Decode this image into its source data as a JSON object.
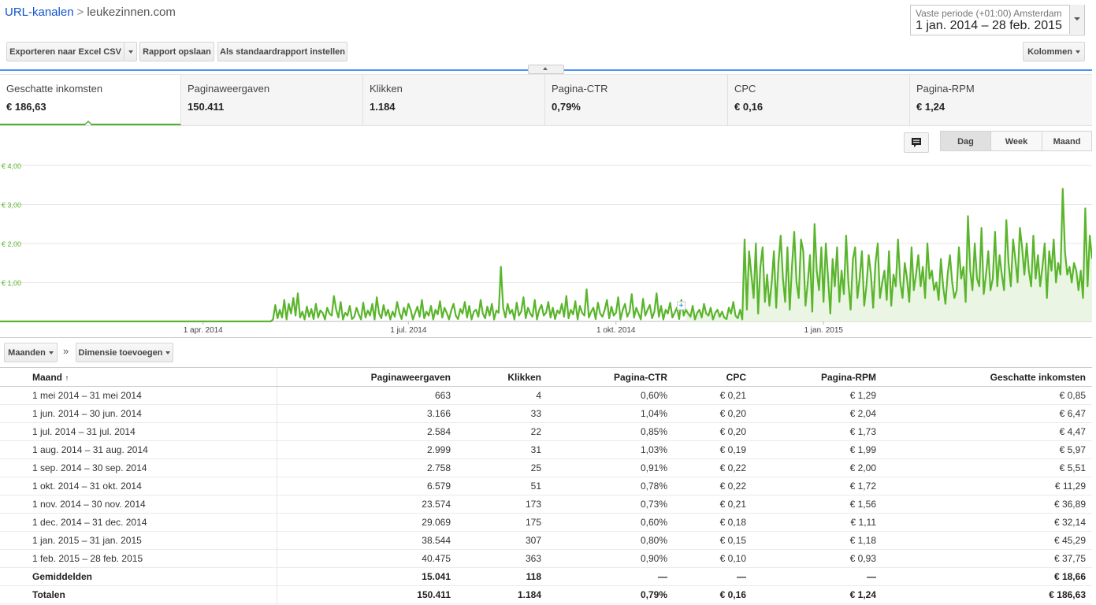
{
  "breadcrumb": {
    "parent": "URL-kanalen",
    "separator": ">",
    "current": "leukezinnen.com"
  },
  "daterange": {
    "label": "Vaste periode (+01:00) Amsterdam",
    "value": "1 jan. 2014 – 28 feb. 2015"
  },
  "toolbar": {
    "export_label": "Exporteren naar Excel CSV",
    "save_label": "Rapport opslaan",
    "default_label": "Als standaardrapport instellen",
    "columns_label": "Kolommen"
  },
  "scorecards": [
    {
      "label": "Geschatte inkomsten",
      "value": "€ 186,63"
    },
    {
      "label": "Paginaweergaven",
      "value": "150.411"
    },
    {
      "label": "Klikken",
      "value": "1.184"
    },
    {
      "label": "Pagina-CTR",
      "value": "0,79%"
    },
    {
      "label": "CPC",
      "value": "€ 0,16"
    },
    {
      "label": "Pagina-RPM",
      "value": "€ 1,24"
    }
  ],
  "granularity": {
    "day": "Dag",
    "week": "Week",
    "month": "Maand",
    "selected": "Dag"
  },
  "dimensions": {
    "months_label": "Maanden",
    "arrow": "»",
    "add_label": "Dimensie toevoegen"
  },
  "chart_data": {
    "type": "line",
    "y_ticks": [
      "€ 4,00",
      "€ 3,00",
      "€ 2,00",
      "€ 1,00"
    ],
    "x_ticks": [
      "1 apr. 2014",
      "1 jul. 2014",
      "1 okt. 2014",
      "1 jan. 2015"
    ],
    "ylim": [
      0,
      4
    ],
    "series": [
      {
        "color": "#5ab52c",
        "values": [
          0,
          0,
          0,
          0,
          0,
          0,
          0,
          0,
          0,
          0,
          0,
          0,
          0,
          0,
          0,
          0,
          0,
          0,
          0,
          0,
          0,
          0,
          0,
          0,
          0,
          0,
          0,
          0,
          0,
          0,
          0,
          0,
          0,
          0,
          0,
          0,
          0,
          0,
          0,
          0,
          0,
          0,
          0,
          0,
          0,
          0,
          0,
          0,
          0,
          0,
          0,
          0,
          0,
          0,
          0,
          0,
          0,
          0,
          0,
          0,
          0,
          0,
          0,
          0,
          0,
          0,
          0,
          0,
          0,
          0,
          0,
          0,
          0,
          0,
          0,
          0,
          0,
          0,
          0,
          0,
          0,
          0,
          0,
          0,
          0,
          0,
          0,
          0,
          0,
          0,
          0,
          0,
          0,
          0,
          0,
          0,
          0,
          0,
          0,
          0,
          0,
          0,
          0,
          0,
          0,
          0,
          0,
          0,
          0,
          0,
          0,
          0,
          0,
          0,
          0,
          0,
          0,
          0,
          0,
          0,
          0,
          0.05,
          0.42,
          0.08,
          0.3,
          0.1,
          0.55,
          0.05,
          0.45,
          0.2,
          0.6,
          0.15,
          0.72,
          0.1,
          0.25,
          0.05,
          0.38,
          0.12,
          0.32,
          0.06,
          0.45,
          0.1,
          0.28,
          0.22,
          0.05,
          0.35,
          0.2,
          0.15,
          0.65,
          0.3,
          0.1,
          0.5,
          0.05,
          0.22,
          0.15,
          0.4,
          0.06,
          0.12,
          0.35,
          0.18,
          0.05,
          0.48,
          0.1,
          0.28,
          0.15,
          0.45,
          0.05,
          0.62,
          0.2,
          0.08,
          0.42,
          0.15,
          0.3,
          0.05,
          0.25,
          0.12,
          0.5,
          0.22,
          0.06,
          0.35,
          0.15,
          0.45,
          0.3,
          0.05,
          0.22,
          0.38,
          0.12,
          0.55,
          0.08,
          0.25,
          0.15,
          0.4,
          0.05,
          0.3,
          0.18,
          0.52,
          0.1,
          0.35,
          0.22,
          0.05,
          0.28,
          0.45,
          0.15,
          0.06,
          0.32,
          0.2,
          0.5,
          0.1,
          0.4,
          0.05,
          0.25,
          0.3,
          0.12,
          0.55,
          0.2,
          0.08,
          0.38,
          0.15,
          0.45,
          0.05,
          0.28,
          0.22,
          1.4,
          0.35,
          0.1,
          0.45,
          0.2,
          0.3,
          0.05,
          0.48,
          0.15,
          0.25,
          0.62,
          0.08,
          0.35,
          0.2,
          0.12,
          0.55,
          0.05,
          0.3,
          0.42,
          0.15,
          0.22,
          0.5,
          0.1,
          0.35,
          0.06,
          0.28,
          0.2,
          0.45,
          0.12,
          0.65,
          0.08,
          0.3,
          0.18,
          0.52,
          0.05,
          0.4,
          0.22,
          0.15,
          0.82,
          0.1,
          0.25,
          0.35,
          0.06,
          0.48,
          0.2,
          0.12,
          0.3,
          0.55,
          0.08,
          0.38,
          0.15,
          0.22,
          0.62,
          0.05,
          0.3,
          0.45,
          0.12,
          0.25,
          0.7,
          0.1,
          0.35,
          0.2,
          0.05,
          0.58,
          0.15,
          0.3,
          0.42,
          0.08,
          0.25,
          0.72,
          0.12,
          0.4,
          0.05,
          0.3,
          0.2,
          0.48,
          0.1,
          0.22,
          0.35,
          0.06,
          0.55,
          0.15,
          0.3,
          0.2,
          0.12,
          0.4,
          0.05,
          0.22,
          0.3,
          0.1,
          0.45,
          0.2,
          0.15,
          0.35,
          0.05,
          0.22,
          0.3,
          0.12,
          0.25,
          0.1,
          0.06,
          0.35,
          0.2,
          0.5,
          0.15,
          0.08,
          0.3,
          0.05,
          2.1,
          0.3,
          1.8,
          1.2,
          0.6,
          2.0,
          0.2,
          1.4,
          1.9,
          0.5,
          1.2,
          0.4,
          1.0,
          1.8,
          0.35,
          1.5,
          2.2,
          1.1,
          0.5,
          1.9,
          0.3,
          1.4,
          2.3,
          1.0,
          0.6,
          2.1,
          1.8,
          0.4,
          1.0,
          1.7,
          0.25,
          2.5,
          1.3,
          0.8,
          1.9,
          0.5,
          2.0,
          1.1,
          0.2,
          1.6,
          0.9,
          1.9,
          0.5,
          1.3,
          0.7,
          2.2,
          1.0,
          0.3,
          1.6,
          1.9,
          0.6,
          1.1,
          1.8,
          0.4,
          0.9,
          1.7,
          1.2,
          0.35,
          1.5,
          2.0,
          0.6,
          1.0,
          1.3,
          0.55,
          1.8,
          0.4,
          1.2,
          0.9,
          2.1,
          1.0,
          0.6,
          1.5,
          1.1,
          0.5,
          1.9,
          0.8,
          1.2,
          1.7,
          0.9,
          1.4,
          0.6,
          2.0,
          1.1,
          1.3,
          0.8,
          1.0,
          0.55,
          1.6,
          0.9,
          0.45,
          1.2,
          1.7,
          1.0,
          0.6,
          0.8,
          1.9,
          1.1,
          1.4,
          0.5,
          2.7,
          1.3,
          0.8,
          2.0,
          1.1,
          0.9,
          2.4,
          0.7,
          1.2,
          1.8,
          0.8,
          1.1,
          2.3,
          0.9,
          1.7,
          1.2,
          0.8,
          2.6,
          1.5,
          0.9,
          2.1,
          1.6,
          1.0,
          2.4,
          1.9,
          1.2,
          2.0,
          1.3,
          0.9,
          2.2,
          1.1,
          1.7,
          0.9,
          1.4,
          2.0,
          0.6,
          1.8,
          1.3,
          2.1,
          1.0,
          1.5,
          1.2,
          3.4,
          1.8,
          1.2,
          1.4,
          1.0,
          1.5,
          1.3,
          0.8,
          1.3,
          0.6,
          2.9,
          0.9,
          2.2,
          1.6
        ]
      }
    ]
  },
  "table": {
    "columns": [
      "Maand",
      "Paginaweergaven",
      "Klikken",
      "Pagina-CTR",
      "CPC",
      "Pagina-RPM",
      "Geschatte inkomsten"
    ],
    "sort_indicator": "↑",
    "rows": [
      [
        "1 mei 2014 – 31 mei 2014",
        "663",
        "4",
        "0,60%",
        "€ 0,21",
        "€ 1,29",
        "€ 0,85"
      ],
      [
        "1 jun. 2014 – 30 jun. 2014",
        "3.166",
        "33",
        "1,04%",
        "€ 0,20",
        "€ 2,04",
        "€ 6,47"
      ],
      [
        "1 jul. 2014 – 31 jul. 2014",
        "2.584",
        "22",
        "0,85%",
        "€ 0,20",
        "€ 1,73",
        "€ 4,47"
      ],
      [
        "1 aug. 2014 – 31 aug. 2014",
        "2.999",
        "31",
        "1,03%",
        "€ 0,19",
        "€ 1,99",
        "€ 5,97"
      ],
      [
        "1 sep. 2014 – 30 sep. 2014",
        "2.758",
        "25",
        "0,91%",
        "€ 0,22",
        "€ 2,00",
        "€ 5,51"
      ],
      [
        "1 okt. 2014 – 31 okt. 2014",
        "6.579",
        "51",
        "0,78%",
        "€ 0,22",
        "€ 1,72",
        "€ 11,29"
      ],
      [
        "1 nov. 2014 – 30 nov. 2014",
        "23.574",
        "173",
        "0,73%",
        "€ 0,21",
        "€ 1,56",
        "€ 36,89"
      ],
      [
        "1 dec. 2014 – 31 dec. 2014",
        "29.069",
        "175",
        "0,60%",
        "€ 0,18",
        "€ 1,11",
        "€ 32,14"
      ],
      [
        "1 jan. 2015 – 31 jan. 2015",
        "38.544",
        "307",
        "0,80%",
        "€ 0,15",
        "€ 1,18",
        "€ 45,29"
      ],
      [
        "1 feb. 2015 – 28 feb. 2015",
        "40.475",
        "363",
        "0,90%",
        "€ 0,10",
        "€ 0,93",
        "€ 37,75"
      ]
    ],
    "averages": [
      "Gemiddelden",
      "15.041",
      "118",
      "—",
      "—",
      "—",
      "€ 18,66"
    ],
    "totals": [
      "Totalen",
      "150.411",
      "1.184",
      "0,79%",
      "€ 0,16",
      "€ 1,24",
      "€ 186,63"
    ]
  }
}
